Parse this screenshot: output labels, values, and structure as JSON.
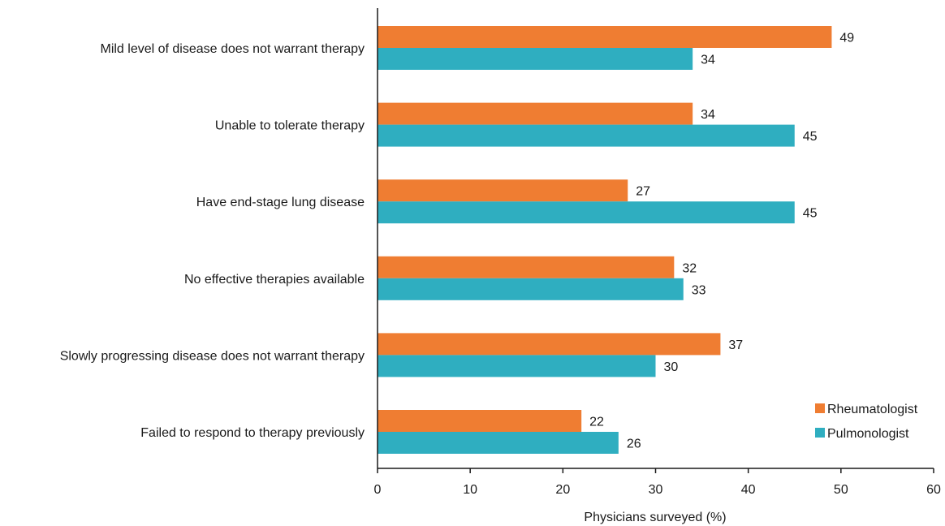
{
  "chart_data": {
    "type": "bar",
    "orientation": "horizontal",
    "categories": [
      "Mild level of disease does not warrant therapy",
      "Unable to tolerate therapy",
      "Have end-stage lung disease",
      "No effective therapies available",
      "Slowly progressing disease does not warrant therapy",
      "Failed to respond to therapy previously"
    ],
    "series": [
      {
        "name": "Rheumatologist",
        "color": "#ef7d32",
        "values": [
          49,
          34,
          27,
          32,
          37,
          22
        ]
      },
      {
        "name": "Pulmonologist",
        "color": "#2faec0",
        "values": [
          34,
          45,
          45,
          33,
          30,
          26
        ]
      }
    ],
    "xlabel": "Physicians surveyed (%)",
    "xlim": [
      0,
      60
    ],
    "xticks": [
      "0",
      "10",
      "20",
      "30",
      "40",
      "50",
      "60"
    ],
    "grid": false,
    "legend_position": "bottom-right"
  }
}
